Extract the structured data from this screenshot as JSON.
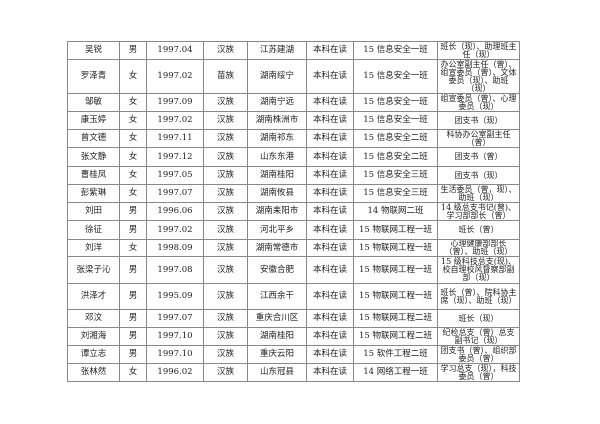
{
  "rows": [
    {
      "name": "吴锐",
      "gender": "男",
      "birth": "1997.04",
      "ethnicity": "汉族",
      "hometown": "江苏建湖",
      "education": "本科在读",
      "class": "15 信息安全一班",
      "role": "班长（现）、助理班主任（现）"
    },
    {
      "name": "罗泽青",
      "gender": "女",
      "birth": "1997.02",
      "ethnicity": "苗族",
      "hometown": "湖南绥宁",
      "education": "本科在读",
      "class": "15 信息安全一班",
      "role": "办公室副主任（曾）、组宣委员（曾）、文体委员（现）、助班（现）"
    },
    {
      "name": "邹敏",
      "gender": "女",
      "birth": "1997.09",
      "ethnicity": "汉族",
      "hometown": "湖南宁远",
      "education": "本科在读",
      "class": "15 信息安全一班",
      "role": "组宣委员（曾）、心理委员（现）"
    },
    {
      "name": "康玉婷",
      "gender": "女",
      "birth": "1997.02",
      "ethnicity": "汉族",
      "hometown": "湖南株洲市",
      "education": "本科在读",
      "class": "15 信息安全一班",
      "role": "团支书（现）"
    },
    {
      "name": "曾文德",
      "gender": "女",
      "birth": "1997.11",
      "ethnicity": "汉族",
      "hometown": "湖南祁东",
      "education": "本科在读",
      "class": "15 信息安全二班",
      "role": "科协办公室副主任（曾）"
    },
    {
      "name": "张文静",
      "gender": "女",
      "birth": "1997.12",
      "ethnicity": "汉族",
      "hometown": "山东东港",
      "education": "本科在读",
      "class": "15 信息安全二班",
      "role": "团支书（曾）"
    },
    {
      "name": "曹桂凤",
      "gender": "女",
      "birth": "1997.05",
      "ethnicity": "汉族",
      "hometown": "湖南桂阳",
      "education": "本科在读",
      "class": "15 信息安全三班",
      "role": "团支书（现）"
    },
    {
      "name": "彭紫琳",
      "gender": "女",
      "birth": "1997.07",
      "ethnicity": "汉族",
      "hometown": "湖南攸县",
      "education": "本科在读",
      "class": "15 信息安全三班",
      "role": "生活委员（曾，现）、助班（现）"
    },
    {
      "name": "刘田",
      "gender": "男",
      "birth": "1996.06",
      "ethnicity": "汉族",
      "hometown": "湖南耒阳市",
      "education": "本科在读",
      "class": "14 物联网二班",
      "role": "14 级总支书记(曾)、学习部部长（曾）"
    },
    {
      "name": "徐征",
      "gender": "男",
      "birth": "1997.02",
      "ethnicity": "汉族",
      "hometown": "河北平乡",
      "education": "本科在读",
      "class": "15 物联网工程一班",
      "role": "班长（曾）"
    },
    {
      "name": "刘洋",
      "gender": "女",
      "birth": "1998.09",
      "ethnicity": "汉族",
      "hometown": "湖南常德市",
      "education": "本科在读",
      "class": "15 物联网工程一班",
      "role": "心理健康部部长（曾）、助班（现）"
    },
    {
      "name": "张梁子沁",
      "gender": "男",
      "birth": "1997.08",
      "ethnicity": "汉族",
      "hometown": "安徽合肥",
      "education": "本科在读",
      "class": "15 物联网工程一班",
      "role": "15 级科技总支(现)、校自理校风督察部副部（现）"
    },
    {
      "name": "洪泽才",
      "gender": "男",
      "birth": "1995.09",
      "ethnicity": "汉族",
      "hometown": "江西余干",
      "education": "本科在读",
      "class": "15 物联网工程一班",
      "role": "班长（曾）、院科协主席（现）、助班（现）"
    },
    {
      "name": "邓汶",
      "gender": "男",
      "birth": "1997.07",
      "ethnicity": "汉族",
      "hometown": "重庆合川区",
      "education": "本科在读",
      "class": "15 物联网工程二班",
      "role": "班长（现）"
    },
    {
      "name": "刘湘海",
      "gender": "男",
      "birth": "1997.10",
      "ethnicity": "汉族",
      "hometown": "湖南桂阳",
      "education": "本科在读",
      "class": "15 物联网工程二班",
      "role": "纪检总支（曾）总支副书记（现）"
    },
    {
      "name": "谭立志",
      "gender": "男",
      "birth": "1997.10",
      "ethnicity": "汉族",
      "hometown": "重庆云阳",
      "education": "本科在读",
      "class": "15 软件工程二班",
      "role": "团支书（曾）、组织部委员（曾）"
    },
    {
      "name": "张林然",
      "gender": "女",
      "birth": "1996.02",
      "ethnicity": "汉族",
      "hometown": "山东冠县",
      "education": "本科在读",
      "class": "14 网络工程一班",
      "role": "学习总支（现），科技委员（曾）"
    }
  ]
}
